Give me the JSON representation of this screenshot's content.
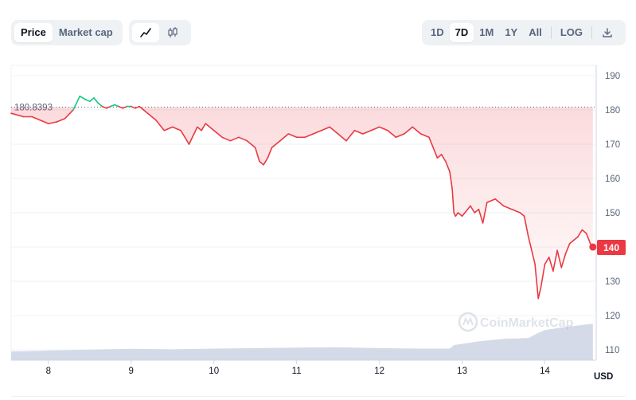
{
  "toolbar": {
    "type_tabs": [
      "Price",
      "Market cap"
    ],
    "active_type": "Price",
    "style_icons": [
      "line-chart-icon",
      "candlestick-icon"
    ],
    "active_style": "line-chart-icon",
    "ranges": [
      "1D",
      "7D",
      "1M",
      "1Y",
      "All"
    ],
    "active_range": "7D",
    "log_label": "LOG",
    "download_icon": "download-icon"
  },
  "colors": {
    "up": "#16c784",
    "down": "#ea3943",
    "volume": "#cfd6e4",
    "grid": "#eff2f5"
  },
  "chart_data": {
    "type": "line",
    "currency": "USD",
    "reference_price": "180.8393",
    "current_price_label": "140",
    "watermark": "CoinMarketCap",
    "ylim": [
      107,
      193
    ],
    "yticks": [
      110,
      120,
      130,
      140,
      150,
      160,
      170,
      180,
      190
    ],
    "xlim": [
      7.55,
      14.62
    ],
    "xticks": [
      "8",
      "9",
      "10",
      "11",
      "12",
      "13",
      "14"
    ],
    "price_series": {
      "x": [
        7.55,
        7.7,
        7.8,
        7.9,
        8.0,
        8.1,
        8.2,
        8.3,
        8.38,
        8.45,
        8.5,
        8.55,
        8.6,
        8.65,
        8.7,
        8.75,
        8.8,
        8.85,
        8.9,
        8.95,
        9.0,
        9.05,
        9.1,
        9.15,
        9.2,
        9.3,
        9.4,
        9.5,
        9.6,
        9.7,
        9.8,
        9.85,
        9.9,
        10.0,
        10.1,
        10.2,
        10.3,
        10.4,
        10.5,
        10.55,
        10.6,
        10.65,
        10.7,
        10.8,
        10.9,
        11.0,
        11.1,
        11.2,
        11.3,
        11.4,
        11.5,
        11.6,
        11.7,
        11.8,
        11.9,
        12.0,
        12.1,
        12.2,
        12.3,
        12.35,
        12.4,
        12.5,
        12.6,
        12.7,
        12.75,
        12.8,
        12.85,
        12.88,
        12.9,
        12.92,
        12.95,
        13.0,
        13.1,
        13.15,
        13.2,
        13.25,
        13.3,
        13.4,
        13.5,
        13.6,
        13.7,
        13.75,
        13.8,
        13.85,
        13.88,
        13.92,
        13.95,
        14.0,
        14.05,
        14.1,
        14.15,
        14.2,
        14.25,
        14.3,
        14.35,
        14.4,
        14.45,
        14.5,
        14.55,
        14.58
      ],
      "y": [
        179,
        178,
        178,
        177,
        176,
        176.5,
        177.5,
        180,
        184,
        183,
        182.5,
        183.5,
        182,
        181,
        180.5,
        181,
        181.5,
        181,
        180.5,
        181,
        181,
        180.5,
        181,
        180,
        179,
        177,
        174,
        175,
        174,
        170,
        175,
        174,
        176,
        174,
        172,
        171,
        172,
        171,
        169,
        165,
        164,
        166,
        169,
        171,
        173,
        172,
        172,
        173,
        174,
        175,
        173,
        171,
        174,
        173,
        174,
        175,
        174,
        172,
        173,
        174,
        175,
        173,
        172,
        166,
        167,
        165,
        162,
        157,
        150,
        149,
        150,
        149,
        152,
        150,
        151,
        147,
        153,
        154,
        152,
        151,
        150,
        149,
        143,
        138,
        135,
        125,
        128,
        135,
        137,
        133,
        139,
        134,
        138,
        141,
        142,
        143,
        145,
        144,
        141,
        140
      ]
    },
    "up_until_x": 9.1,
    "volume_series": {
      "x": [
        7.55,
        8.0,
        8.5,
        9.0,
        9.5,
        10.0,
        10.5,
        11.0,
        11.5,
        12.0,
        12.5,
        12.85,
        12.9,
        13.2,
        13.5,
        13.8,
        13.9,
        14.0,
        14.2,
        14.4,
        14.58
      ],
      "y": [
        3.5,
        3.8,
        4.2,
        4.5,
        4.3,
        4.6,
        4.8,
        5.0,
        5.1,
        4.8,
        4.6,
        4.6,
        6.0,
        7.5,
        8.5,
        8.8,
        10.5,
        12.0,
        13.0,
        13.8,
        14.5
      ]
    },
    "volume_max": 16.5
  }
}
